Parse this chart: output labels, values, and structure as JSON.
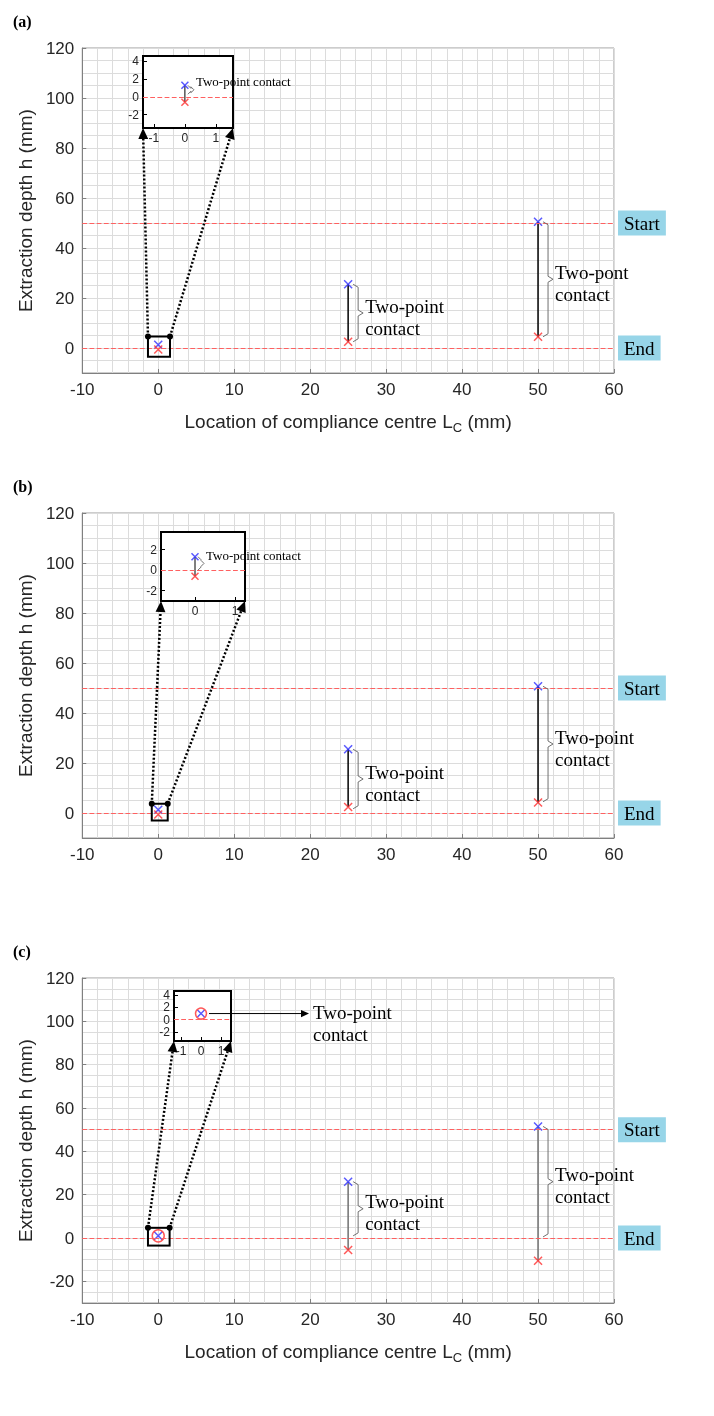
{
  "chart_data": [
    {
      "type": "scatter",
      "title": "(a)",
      "xlabel": "Location of compliance centre L$_{C}$ (mm)",
      "ylabel": "Extraction depth h (mm)",
      "xlim": [
        -10,
        60
      ],
      "xticks": [
        -10,
        0,
        10,
        20,
        30,
        40,
        50,
        60
      ],
      "ylim": [
        -10,
        120
      ],
      "yticks": [
        0,
        20,
        40,
        60,
        80,
        100,
        120
      ],
      "grid": true,
      "marker": "cross",
      "series": [
        {
          "type": "line",
          "marker": "none",
          "color": "#000000",
          "x": [
            25,
            25
          ],
          "values": [
            2.5,
            25.5
          ]
        },
        {
          "type": "line",
          "marker": "none",
          "color": "#000000",
          "x": [
            50,
            50
          ],
          "values": [
            4.5,
            50.5
          ]
        },
        {
          "color": "#3030ff",
          "x": [
            0,
            25,
            50
          ],
          "values": [
            1.3,
            25.5,
            50.5
          ]
        },
        {
          "color": "#ff3030",
          "x": [
            0,
            25,
            50
          ],
          "values": [
            -0.6,
            2.5,
            4.5
          ]
        }
      ],
      "ref_lines": [
        {
          "axis": "y",
          "value": 50,
          "label": "Start",
          "color": "#ff6060",
          "line_style": "dashed"
        },
        {
          "axis": "y",
          "value": 0,
          "label": "End",
          "color": "#ff6060",
          "line_style": "dashed"
        }
      ],
      "annotations": [
        {
          "text": "Two-point contact",
          "x": 25,
          "y": 14
        },
        {
          "text": "Two-pont contact",
          "x": 50,
          "y": 27.5
        }
      ]
    },
    {
      "type": "scatter",
      "xlim": [
        -1.35,
        1.55
      ],
      "xticks": [
        -1,
        0,
        1
      ],
      "ylim": [
        -3.5,
        4.6
      ],
      "yticks": [
        -2,
        0,
        2,
        4
      ],
      "marker": "cross",
      "series": [
        {
          "type": "line",
          "marker": "none",
          "color": "#000000",
          "x": [
            0,
            0
          ],
          "values": [
            -0.6,
            1.3
          ]
        },
        {
          "color": "#3030ff",
          "x": [
            0
          ],
          "values": [
            1.3
          ]
        },
        {
          "color": "#ff3030",
          "x": [
            0
          ],
          "values": [
            -0.6
          ]
        }
      ],
      "ref_lines": [
        {
          "axis": "y",
          "value": 0,
          "color": "#ff6060",
          "line_style": "dashed"
        }
      ],
      "annotations": [
        {
          "text": "Two-point contact",
          "x": 0,
          "y": 0.8
        }
      ]
    },
    {
      "type": "scatter",
      "title": "(b)",
      "ylabel": "Extraction depth h (mm)",
      "xlim": [
        -10,
        60
      ],
      "xticks": [
        -10,
        0,
        10,
        20,
        30,
        40,
        50,
        60
      ],
      "ylim": [
        -10,
        120
      ],
      "yticks": [
        0,
        20,
        40,
        60,
        80,
        100,
        120
      ],
      "grid": true,
      "marker": "cross",
      "series": [
        {
          "type": "line",
          "marker": "none",
          "color": "#000000",
          "x": [
            25,
            25
          ],
          "values": [
            2.4,
            25.5
          ]
        },
        {
          "type": "line",
          "marker": "none",
          "color": "#000000",
          "x": [
            50,
            50
          ],
          "values": [
            4.2,
            50.7
          ]
        },
        {
          "color": "#3030ff",
          "x": [
            0,
            25,
            50
          ],
          "values": [
            1.3,
            25.5,
            50.7
          ]
        },
        {
          "color": "#ff3030",
          "x": [
            0,
            25,
            50
          ],
          "values": [
            -0.6,
            2.4,
            4.2
          ]
        }
      ],
      "ref_lines": [
        {
          "axis": "y",
          "value": 50,
          "label": "Start",
          "color": "#ff6060",
          "line_style": "dashed"
        },
        {
          "axis": "y",
          "value": 0,
          "label": "End",
          "color": "#ff6060",
          "line_style": "dashed"
        }
      ],
      "annotations": [
        {
          "text": "Two-point contact",
          "x": 25,
          "y": 13.6
        },
        {
          "text": "Two-point contact",
          "x": 50,
          "y": 27.6
        }
      ]
    },
    {
      "type": "scatter",
      "xlim": [
        -0.85,
        1.25
      ],
      "xticks": [
        0,
        1
      ],
      "ylim": [
        -3,
        3.7
      ],
      "yticks": [
        -2,
        0,
        2
      ],
      "marker": "cross",
      "series": [
        {
          "type": "line",
          "marker": "none",
          "color": "#000000",
          "x": [
            0,
            0
          ],
          "values": [
            -0.6,
            1.3
          ]
        },
        {
          "color": "#3030ff",
          "x": [
            0
          ],
          "values": [
            1.3
          ]
        },
        {
          "color": "#ff3030",
          "x": [
            0
          ],
          "values": [
            -0.6
          ]
        }
      ],
      "ref_lines": [
        {
          "axis": "y",
          "value": 0,
          "color": "#ff6060",
          "line_style": "dashed"
        }
      ],
      "annotations": [
        {
          "text": "Two-point contact",
          "x": 0,
          "y": 0.65
        }
      ]
    },
    {
      "type": "scatter",
      "title": "(c)",
      "xlabel": "Location of compliance centre L$_{C}$ (mm)",
      "ylabel": "Extraction depth h (mm)",
      "xlim": [
        -10,
        60
      ],
      "xticks": [
        -10,
        0,
        10,
        20,
        30,
        40,
        50,
        60
      ],
      "ylim": [
        -30,
        120
      ],
      "yticks": [
        -20,
        0,
        20,
        40,
        60,
        80,
        100,
        120
      ],
      "grid": true,
      "marker": "cross",
      "series": [
        {
          "type": "line",
          "marker": "none",
          "color": "#707070",
          "x": [
            25,
            25
          ],
          "values": [
            -5.5,
            26
          ]
        },
        {
          "type": "line",
          "marker": "none",
          "color": "#707070",
          "x": [
            50,
            50
          ],
          "values": [
            -10.5,
            51.5
          ]
        },
        {
          "color": "#3030ff",
          "x": [
            0,
            25,
            50
          ],
          "values": [
            1,
            26,
            51.5
          ]
        },
        {
          "color": "#ff3030",
          "x": [
            25,
            50
          ],
          "values": [
            -5.5,
            -10.5
          ]
        },
        {
          "color": "#ff3030",
          "marker": "circle",
          "x": [
            0
          ],
          "values": [
            1
          ]
        }
      ],
      "ref_lines": [
        {
          "axis": "y",
          "value": 50,
          "label": "Start",
          "color": "#ff6060",
          "line_style": "dashed"
        },
        {
          "axis": "y",
          "value": 0,
          "label": "End",
          "color": "#ff6060",
          "line_style": "dashed"
        }
      ],
      "annotations": [
        {
          "text": "Two-point contact",
          "x": 25,
          "y": 13.5
        },
        {
          "text": "Two-point contact",
          "x": 50,
          "y": 26
        }
      ]
    },
    {
      "type": "scatter",
      "xlim": [
        -1.35,
        1.5
      ],
      "xticks": [
        -1,
        0,
        1
      ],
      "ylim": [
        -3.5,
        4.7
      ],
      "yticks": [
        -2,
        0,
        2,
        4
      ],
      "marker": "cross",
      "series": [
        {
          "color": "#3030ff",
          "x": [
            0
          ],
          "values": [
            1
          ]
        },
        {
          "color": "#ff3030",
          "marker": "circle",
          "x": [
            0
          ],
          "values": [
            1
          ]
        }
      ],
      "ref_lines": [
        {
          "axis": "y",
          "value": 0,
          "color": "#ff6060",
          "line_style": "dashed"
        }
      ],
      "annotations": [
        {
          "text": "Two-point contact",
          "x": 0,
          "y": 1
        }
      ]
    }
  ]
}
